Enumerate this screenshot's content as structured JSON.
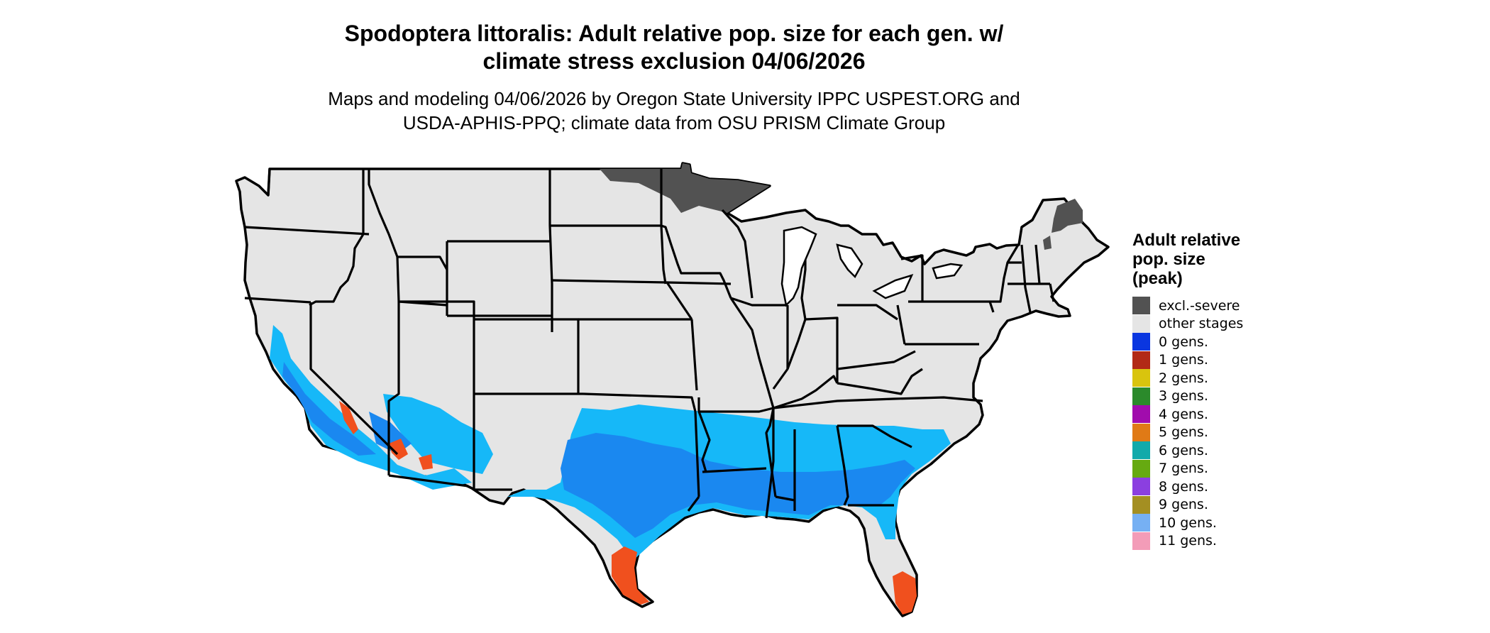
{
  "title_line1": "Spodoptera littoralis: Adult relative pop. size for each gen. w/",
  "title_line2": "climate stress exclusion 04/06/2026",
  "subtitle_line1": "Maps and modeling 04/06/2026 by Oregon State University IPPC USPEST.ORG and",
  "subtitle_line2": "USDA-APHIS-PPQ; climate data from OSU PRISM Climate Group",
  "legend": {
    "title_line1": "Adult relative",
    "title_line2": "pop. size",
    "title_line3": "(peak)",
    "items": [
      {
        "label": "excl.-severe",
        "color": "#525252"
      },
      {
        "label": "other stages",
        "color": "#e5e5e5"
      },
      {
        "label": "0 gens.",
        "color": "#0a36e0"
      },
      {
        "label": "1 gens.",
        "color": "#b22a16"
      },
      {
        "label": "2 gens.",
        "color": "#d9c40e"
      },
      {
        "label": "3 gens.",
        "color": "#2b8a2b"
      },
      {
        "label": "4 gens.",
        "color": "#a10cad"
      },
      {
        "label": "5 gens.",
        "color": "#e07a16"
      },
      {
        "label": "6 gens.",
        "color": "#12aaaa"
      },
      {
        "label": "7 gens.",
        "color": "#66aa11"
      },
      {
        "label": "8 gens.",
        "color": "#8b3fe0"
      },
      {
        "label": "9 gens.",
        "color": "#a48f22"
      },
      {
        "label": "10 gens.",
        "color": "#76b0f3"
      },
      {
        "label": "11 gens.",
        "color": "#f39cb8"
      }
    ]
  },
  "map_colors": {
    "land": "#e5e5e5",
    "border": "#000000",
    "excluded": "#525252",
    "gen_high": "#1a88f0",
    "gen_mid": "#16b8f8",
    "gen_south_tip": "#f0501e"
  }
}
